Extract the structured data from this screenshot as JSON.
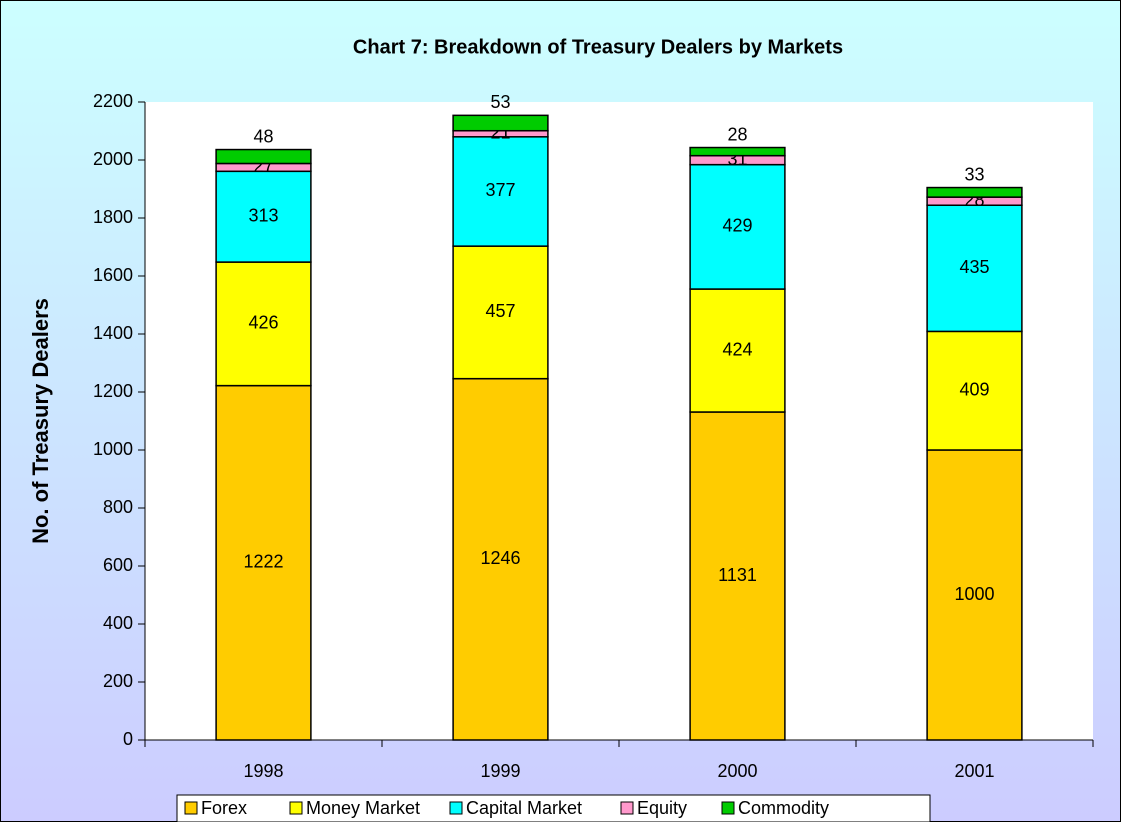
{
  "chart_data": {
    "type": "stacked_bar",
    "title": "Chart 7: Breakdown of Treasury Dealers by Markets",
    "y_label": "No. of Treasury Dealers",
    "categories": [
      "1998",
      "1999",
      "2000",
      "2001"
    ],
    "series": [
      {
        "name": "Forex",
        "color": "#FFCC00",
        "values": [
          1222,
          1246,
          1131,
          1000
        ]
      },
      {
        "name": "Money Market",
        "color": "#FFFF00",
        "values": [
          426,
          457,
          424,
          409
        ]
      },
      {
        "name": "Capital Market",
        "color": "#00FFFF",
        "values": [
          313,
          377,
          429,
          435
        ]
      },
      {
        "name": "Equity",
        "color": "#FF99CC",
        "values": [
          27,
          21,
          31,
          28
        ]
      },
      {
        "name": "Commodity",
        "color": "#00CC00",
        "values": [
          48,
          53,
          28,
          33
        ]
      }
    ],
    "ylim": [
      0,
      2200
    ],
    "yticks": [
      0,
      200,
      400,
      600,
      800,
      1000,
      1200,
      1400,
      1600,
      1800,
      2000,
      2200
    ],
    "legend": "bottom"
  }
}
